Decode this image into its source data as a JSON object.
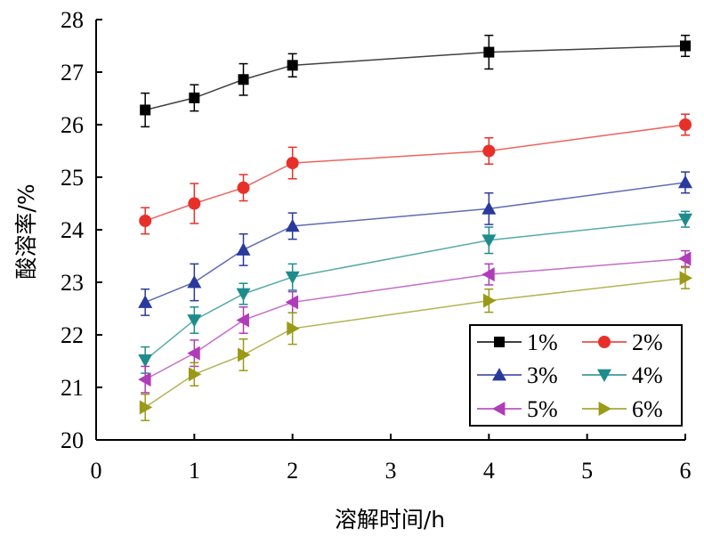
{
  "chart_data": {
    "type": "line",
    "xlabel": "溶解时间/h",
    "ylabel": "酸溶率/%",
    "xlim": [
      0,
      6
    ],
    "ylim": [
      20,
      28
    ],
    "x_ticks": [
      "0",
      "1",
      "2",
      "3",
      "4",
      "5",
      "6"
    ],
    "y_ticks": [
      "20",
      "21",
      "22",
      "23",
      "24",
      "25",
      "26",
      "27",
      "28"
    ],
    "x": [
      0.5,
      1,
      1.5,
      2,
      4,
      6
    ],
    "grid": false,
    "legend_position": "bottom-right",
    "series": [
      {
        "name": "1%",
        "color": "#000000",
        "marker": "square",
        "values": [
          26.28,
          26.51,
          26.86,
          27.13,
          27.38,
          27.5
        ],
        "errors": [
          0.32,
          0.25,
          0.3,
          0.22,
          0.32,
          0.2
        ]
      },
      {
        "name": "2%",
        "color": "#e8302a",
        "marker": "circle",
        "values": [
          24.17,
          24.5,
          24.8,
          25.27,
          25.5,
          26.0
        ],
        "errors": [
          0.25,
          0.38,
          0.25,
          0.3,
          0.25,
          0.2
        ]
      },
      {
        "name": "3%",
        "color": "#2a3a9c",
        "marker": "triangle-up",
        "values": [
          22.62,
          23.0,
          23.62,
          24.07,
          24.4,
          24.9
        ],
        "errors": [
          0.25,
          0.35,
          0.3,
          0.25,
          0.3,
          0.2
        ]
      },
      {
        "name": "4%",
        "color": "#1f8c8c",
        "marker": "triangle-down",
        "values": [
          21.52,
          22.28,
          22.78,
          23.1,
          23.8,
          24.2
        ],
        "errors": [
          0.25,
          0.25,
          0.2,
          0.25,
          0.25,
          0.15
        ]
      },
      {
        "name": "5%",
        "color": "#b03cb8",
        "marker": "triangle-left",
        "values": [
          21.15,
          21.65,
          22.28,
          22.62,
          23.15,
          23.45
        ],
        "errors": [
          0.25,
          0.25,
          0.25,
          0.2,
          0.2,
          0.15
        ]
      },
      {
        "name": "6%",
        "color": "#9a9a18",
        "marker": "triangle-right",
        "values": [
          20.62,
          21.25,
          21.62,
          22.12,
          22.65,
          23.08
        ],
        "errors": [
          0.25,
          0.22,
          0.3,
          0.3,
          0.22,
          0.2
        ]
      }
    ]
  }
}
